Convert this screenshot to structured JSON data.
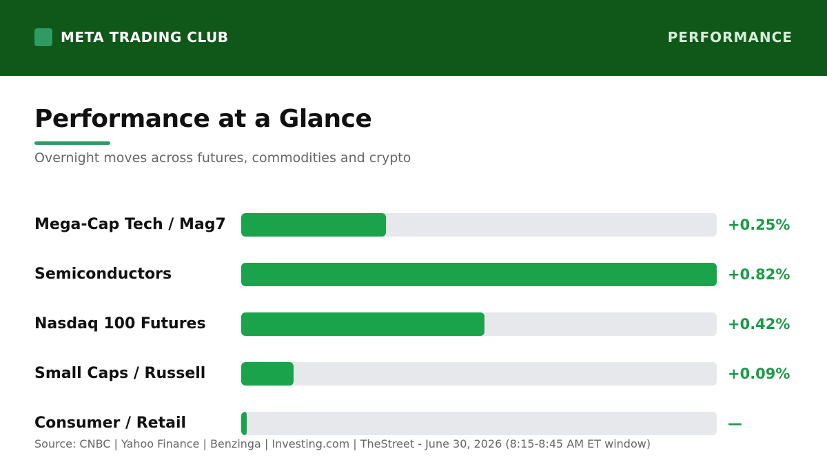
{
  "header": {
    "brand": "META TRADING CLUB",
    "section": "PERFORMANCE",
    "background_color": "#0f5819",
    "logo_color": "#2e9b62"
  },
  "page": {
    "title": "Performance at a Glance",
    "subtitle": "Overnight moves across futures, commodities and crypto",
    "accent_color": "#2e9b62"
  },
  "chart_data": {
    "type": "bar",
    "orientation": "horizontal",
    "categories": [
      "Mega-Cap Tech / Mag7",
      "Semiconductors",
      "Nasdaq 100 Futures",
      "Small Caps / Russell",
      "Consumer / Retail"
    ],
    "values": [
      0.25,
      0.82,
      0.42,
      0.09,
      0
    ],
    "value_labels": [
      "+0.25%",
      "+0.82%",
      "+0.42%",
      "+0.09%",
      "—"
    ],
    "xlim": [
      0,
      0.82
    ],
    "grid": false,
    "bar_color": "#1aa34a",
    "track_color": "#e6e8eb"
  },
  "footer": {
    "source": "Source: CNBC | Yahoo Finance | Benzinga | Investing.com | TheStreet - June 30, 2026 (8:15-8:45 AM ET window)"
  }
}
